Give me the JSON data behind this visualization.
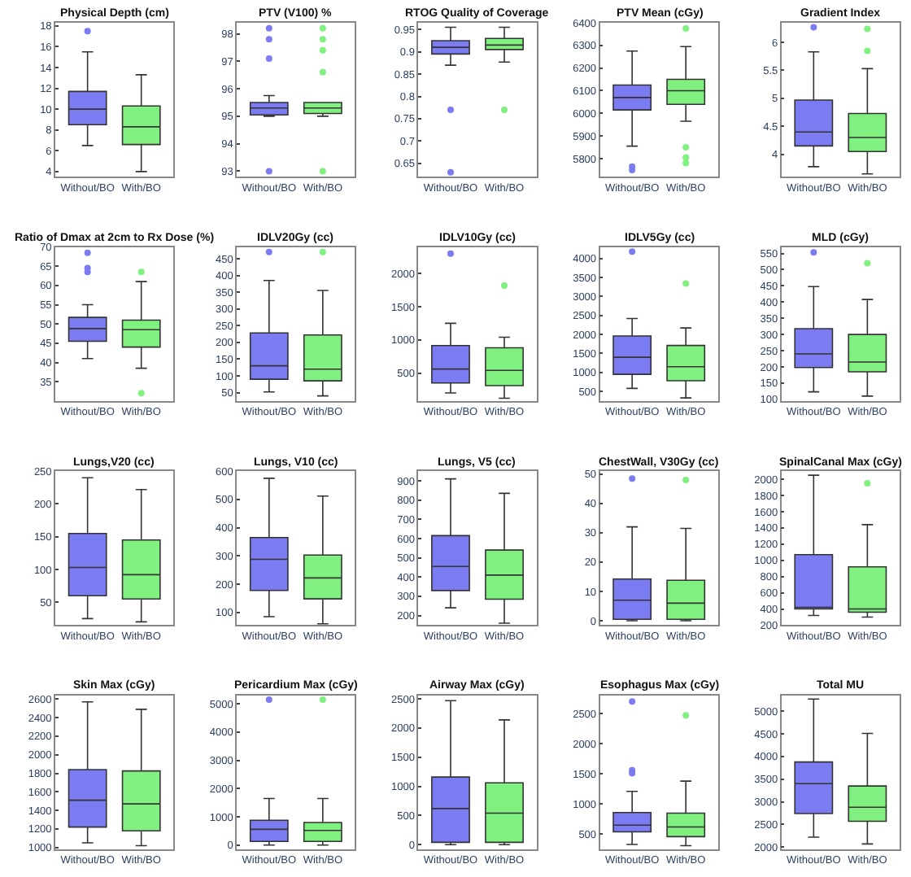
{
  "chart_data": [
    {
      "type": "box",
      "title": "Physical Depth (cm)",
      "categories": [
        "Without/BO",
        "With/BO"
      ],
      "colors": [
        "#7b7bf2",
        "#80f080"
      ],
      "ylim": [
        3.5,
        18.3
      ],
      "yticks": [
        4,
        6,
        8,
        10,
        12,
        14,
        16,
        18
      ],
      "boxes": [
        {
          "low": 6.5,
          "q1": 8.5,
          "median": 10,
          "q3": 11.7,
          "high": 15.5,
          "outliers": [
            17.5
          ]
        },
        {
          "low": 4,
          "q1": 6.6,
          "median": 8.3,
          "q3": 10.3,
          "high": 13.3
        }
      ]
    },
    {
      "type": "box",
      "title": "PTV (V100) %",
      "categories": [
        "Without/BO",
        "With/BO"
      ],
      "colors": [
        "#7b7bf2",
        "#80f080"
      ],
      "ylim": [
        92.8,
        98.4
      ],
      "yticks": [
        93,
        94,
        95,
        96,
        97,
        98
      ],
      "boxes": [
        {
          "low": 95.0,
          "q1": 95.05,
          "median": 95.3,
          "q3": 95.5,
          "high": 95.75,
          "outliers": [
            93,
            97.1,
            97.8,
            98.2
          ]
        },
        {
          "low": 95.0,
          "q1": 95.1,
          "median": 95.3,
          "q3": 95.5,
          "high": 95.5,
          "outliers": [
            93,
            96.6,
            97.4,
            97.8,
            98.2
          ]
        }
      ]
    },
    {
      "type": "box",
      "title": "RTOG Quality of Coverage",
      "categories": [
        "Without/BO",
        "With/BO"
      ],
      "colors": [
        "#7b7bf2",
        "#80f080"
      ],
      "ylim": [
        0.62,
        0.965
      ],
      "yticks": [
        0.65,
        0.7,
        0.75,
        0.8,
        0.85,
        0.9,
        0.95
      ],
      "boxes": [
        {
          "low": 0.87,
          "q1": 0.895,
          "median": 0.91,
          "q3": 0.925,
          "high": 0.955,
          "outliers": [
            0.77,
            0.63
          ]
        },
        {
          "low": 0.877,
          "q1": 0.905,
          "median": 0.915,
          "q3": 0.93,
          "high": 0.955,
          "outliers": [
            0.77
          ]
        }
      ]
    },
    {
      "type": "box",
      "title": "PTV Mean (cGy)",
      "categories": [
        "Without/BO",
        "With/BO"
      ],
      "colors": [
        "#7b7bf2",
        "#80f080"
      ],
      "ylim": [
        5720,
        6400
      ],
      "yticks": [
        5800,
        5900,
        6000,
        6100,
        6200,
        6300,
        6400
      ],
      "boxes": [
        {
          "low": 5855,
          "q1": 6015,
          "median": 6070,
          "q3": 6125,
          "high": 6275,
          "outliers": [
            5765,
            5750
          ]
        },
        {
          "low": 5965,
          "q1": 6040,
          "median": 6100,
          "q3": 6150,
          "high": 6295,
          "outliers": [
            6375,
            5850,
            5805,
            5780
          ]
        }
      ]
    },
    {
      "type": "box",
      "title": "Gradient Index",
      "categories": [
        "Without/BO",
        "With/BO"
      ],
      "colors": [
        "#7b7bf2",
        "#80f080"
      ],
      "ylim": [
        3.6,
        6.35
      ],
      "yticks": [
        4,
        4.5,
        5,
        5.5,
        6
      ],
      "boxes": [
        {
          "low": 3.78,
          "q1": 4.15,
          "median": 4.4,
          "q3": 4.97,
          "high": 5.83,
          "outliers": [
            6.27
          ]
        },
        {
          "low": 3.65,
          "q1": 4.05,
          "median": 4.3,
          "q3": 4.73,
          "high": 5.53,
          "outliers": [
            6.24,
            5.85
          ]
        }
      ]
    },
    {
      "type": "box",
      "title": "Ratio of Dmax at 2cm to Rx Dose (%)",
      "categories": [
        "Without/BO",
        "With/BO"
      ],
      "colors": [
        "#7b7bf2",
        "#80f080"
      ],
      "ylim": [
        30,
        70
      ],
      "yticks": [
        35,
        40,
        45,
        50,
        55,
        60,
        65,
        70
      ],
      "boxes": [
        {
          "low": 41,
          "q1": 45.5,
          "median": 48.8,
          "q3": 51.7,
          "high": 55,
          "outliers": [
            63.5,
            64.5,
            68.5
          ]
        },
        {
          "low": 38.5,
          "q1": 44,
          "median": 48.5,
          "q3": 51,
          "high": 61,
          "outliers": [
            63.5,
            32
          ]
        }
      ]
    },
    {
      "type": "box",
      "title": "IDLV20Gy (cc)",
      "categories": [
        "Without/BO",
        "With/BO"
      ],
      "colors": [
        "#7b7bf2",
        "#80f080"
      ],
      "ylim": [
        25,
        485
      ],
      "yticks": [
        50,
        100,
        150,
        200,
        250,
        300,
        350,
        400,
        450
      ],
      "boxes": [
        {
          "low": 52,
          "q1": 90,
          "median": 130,
          "q3": 228,
          "high": 385,
          "outliers": [
            470
          ]
        },
        {
          "low": 40,
          "q1": 85,
          "median": 120,
          "q3": 222,
          "high": 355,
          "outliers": [
            470
          ]
        }
      ]
    },
    {
      "type": "box",
      "title": "IDLV10Gy (cc)",
      "categories": [
        "Without/BO",
        "With/BO"
      ],
      "colors": [
        "#7b7bf2",
        "#80f080"
      ],
      "ylim": [
        80,
        2400
      ],
      "yticks": [
        500,
        1000,
        1500,
        2000
      ],
      "boxes": [
        {
          "low": 200,
          "q1": 350,
          "median": 560,
          "q3": 915,
          "high": 1250,
          "outliers": [
            2300
          ]
        },
        {
          "low": 120,
          "q1": 310,
          "median": 540,
          "q3": 880,
          "high": 1040,
          "outliers": [
            1820
          ]
        }
      ]
    },
    {
      "type": "box",
      "title": "IDLV5Gy (cc)",
      "categories": [
        "Without/BO",
        "With/BO"
      ],
      "colors": [
        "#7b7bf2",
        "#80f080"
      ],
      "ylim": [
        250,
        4300
      ],
      "yticks": [
        500,
        1000,
        1500,
        2000,
        2500,
        3000,
        3500,
        4000
      ],
      "boxes": [
        {
          "low": 580,
          "q1": 950,
          "median": 1400,
          "q3": 1960,
          "high": 2420,
          "outliers": [
            4180
          ]
        },
        {
          "low": 330,
          "q1": 780,
          "median": 1150,
          "q3": 1710,
          "high": 2170,
          "outliers": [
            3340
          ]
        }
      ]
    },
    {
      "type": "box",
      "title": "MLD (cGy)",
      "categories": [
        "Without/BO",
        "With/BO"
      ],
      "colors": [
        "#7b7bf2",
        "#80f080"
      ],
      "ylim": [
        95,
        570
      ],
      "yticks": [
        100,
        150,
        200,
        250,
        300,
        350,
        400,
        450,
        500,
        550
      ],
      "boxes": [
        {
          "low": 123,
          "q1": 198,
          "median": 240,
          "q3": 318,
          "high": 448,
          "outliers": [
            553
          ]
        },
        {
          "low": 110,
          "q1": 185,
          "median": 215,
          "q3": 300,
          "high": 408,
          "outliers": [
            520
          ]
        }
      ]
    },
    {
      "type": "box",
      "title": "Lungs,V20 (cc)",
      "categories": [
        "Without/BO",
        "With/BO"
      ],
      "colors": [
        "#7b7bf2",
        "#80f080"
      ],
      "ylim": [
        15,
        250
      ],
      "yticks": [
        50,
        100,
        150,
        200,
        250
      ],
      "boxes": [
        {
          "low": 25,
          "q1": 60,
          "median": 103,
          "q3": 155,
          "high": 240
        },
        {
          "low": 20,
          "q1": 55,
          "median": 92,
          "q3": 145,
          "high": 222
        }
      ]
    },
    {
      "type": "box",
      "title": "Lungs, V10 (cc)",
      "categories": [
        "Without/BO",
        "With/BO"
      ],
      "colors": [
        "#7b7bf2",
        "#80f080"
      ],
      "ylim": [
        55,
        600
      ],
      "yticks": [
        100,
        200,
        300,
        400,
        500,
        600
      ],
      "boxes": [
        {
          "low": 85,
          "q1": 178,
          "median": 288,
          "q3": 365,
          "high": 575
        },
        {
          "low": 60,
          "q1": 148,
          "median": 222,
          "q3": 303,
          "high": 512
        }
      ]
    },
    {
      "type": "box",
      "title": "Lungs, V5 (cc)",
      "categories": [
        "Without/BO",
        "With/BO"
      ],
      "colors": [
        "#7b7bf2",
        "#80f080"
      ],
      "ylim": [
        150,
        950
      ],
      "yticks": [
        200,
        300,
        400,
        500,
        600,
        700,
        800,
        900
      ],
      "boxes": [
        {
          "low": 240,
          "q1": 330,
          "median": 455,
          "q3": 615,
          "high": 910
        },
        {
          "low": 160,
          "q1": 285,
          "median": 410,
          "q3": 540,
          "high": 835
        }
      ]
    },
    {
      "type": "box",
      "title": "ChestWall, V30Gy (cc)",
      "categories": [
        "Without/BO",
        "With/BO"
      ],
      "colors": [
        "#7b7bf2",
        "#80f080"
      ],
      "ylim": [
        -1.5,
        51
      ],
      "yticks": [
        0,
        10,
        20,
        30,
        40,
        50
      ],
      "boxes": [
        {
          "low": 0,
          "q1": 0.5,
          "median": 7,
          "q3": 14.2,
          "high": 32,
          "outliers": [
            48.5
          ]
        },
        {
          "low": 0,
          "q1": 0.5,
          "median": 6,
          "q3": 13.8,
          "high": 31.5,
          "outliers": [
            48
          ]
        }
      ]
    },
    {
      "type": "box",
      "title": "SpinalCanal Max (cGy)",
      "categories": [
        "Without/BO",
        "With/BO"
      ],
      "colors": [
        "#7b7bf2",
        "#80f080"
      ],
      "ylim": [
        200,
        2100
      ],
      "yticks": [
        200,
        400,
        600,
        800,
        1000,
        1200,
        1400,
        1600,
        1800,
        2000
      ],
      "boxes": [
        {
          "low": 320,
          "q1": 400,
          "median": 420,
          "q3": 1070,
          "high": 2050
        },
        {
          "low": 300,
          "q1": 360,
          "median": 400,
          "q3": 920,
          "high": 1440,
          "outliers": [
            1950
          ]
        }
      ]
    },
    {
      "type": "box",
      "title": "Skin Max (cGy)",
      "categories": [
        "Without/BO",
        "With/BO"
      ],
      "colors": [
        "#7b7bf2",
        "#80f080"
      ],
      "ylim": [
        980,
        2640
      ],
      "yticks": [
        1000,
        1200,
        1400,
        1600,
        1800,
        2000,
        2200,
        2400,
        2600
      ],
      "boxes": [
        {
          "low": 1050,
          "q1": 1220,
          "median": 1510,
          "q3": 1840,
          "high": 2570
        },
        {
          "low": 1020,
          "q1": 1180,
          "median": 1470,
          "q3": 1825,
          "high": 2490
        }
      ]
    },
    {
      "type": "box",
      "title": "Pericardium Max (cGy)",
      "categories": [
        "Without/BO",
        "With/BO"
      ],
      "colors": [
        "#7b7bf2",
        "#80f080"
      ],
      "ylim": [
        -150,
        5300
      ],
      "yticks": [
        0,
        1000,
        2000,
        3000,
        4000,
        5000
      ],
      "boxes": [
        {
          "low": 0,
          "q1": 130,
          "median": 560,
          "q3": 880,
          "high": 1650,
          "outliers": [
            5150
          ]
        },
        {
          "low": 0,
          "q1": 130,
          "median": 520,
          "q3": 800,
          "high": 1650,
          "outliers": [
            5150
          ]
        }
      ]
    },
    {
      "type": "box",
      "title": "Airway Max (cGy)",
      "categories": [
        "Without/BO",
        "With/BO"
      ],
      "colors": [
        "#7b7bf2",
        "#80f080"
      ],
      "ylim": [
        -80,
        2560
      ],
      "yticks": [
        0,
        500,
        1000,
        1500,
        2000,
        2500
      ],
      "boxes": [
        {
          "low": 0,
          "q1": 40,
          "median": 620,
          "q3": 1160,
          "high": 2470
        },
        {
          "low": 0,
          "q1": 40,
          "median": 540,
          "q3": 1060,
          "high": 2140
        }
      ]
    },
    {
      "type": "box",
      "title": "Esophagus Max (cGy)",
      "categories": [
        "Without/BO",
        "With/BO"
      ],
      "colors": [
        "#7b7bf2",
        "#80f080"
      ],
      "ylim": [
        250,
        2800
      ],
      "yticks": [
        500,
        1000,
        1500,
        2000,
        2500
      ],
      "boxes": [
        {
          "low": 330,
          "q1": 540,
          "median": 650,
          "q3": 860,
          "high": 1210,
          "outliers": [
            1510,
            1560,
            2700
          ]
        },
        {
          "low": 310,
          "q1": 460,
          "median": 620,
          "q3": 850,
          "high": 1380,
          "outliers": [
            2470
          ]
        }
      ]
    },
    {
      "type": "box",
      "title": "Total MU",
      "categories": [
        "Without/BO",
        "With/BO"
      ],
      "colors": [
        "#7b7bf2",
        "#80f080"
      ],
      "ylim": [
        1950,
        5350
      ],
      "yticks": [
        2000,
        2500,
        3000,
        3500,
        4000,
        4500,
        5000
      ],
      "boxes": [
        {
          "low": 2220,
          "q1": 2740,
          "median": 3400,
          "q3": 3880,
          "high": 5270
        },
        {
          "low": 2070,
          "q1": 2570,
          "median": 2880,
          "q3": 3350,
          "high": 4510
        }
      ]
    }
  ]
}
